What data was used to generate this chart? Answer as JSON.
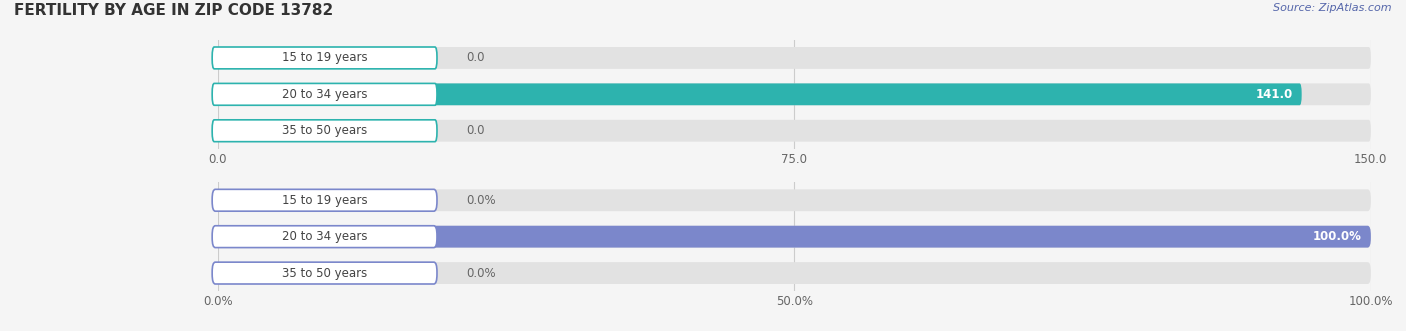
{
  "title": "FERTILITY BY AGE IN ZIP CODE 13782",
  "source": "Source: ZipAtlas.com",
  "background_color": "#f5f5f5",
  "top_chart": {
    "categories": [
      "15 to 19 years",
      "20 to 34 years",
      "35 to 50 years"
    ],
    "values": [
      0.0,
      141.0,
      0.0
    ],
    "xlim": [
      0,
      150.0
    ],
    "xticks": [
      0.0,
      75.0,
      150.0
    ],
    "xtick_labels": [
      "0.0",
      "75.0",
      "150.0"
    ],
    "bar_color": "#2db3ae",
    "bar_bg_color": "#e2e2e2",
    "label_border_color": "#2db3ae",
    "value_color_inside": "#ffffff",
    "value_color_outside": "#666666",
    "bar_height": 0.6
  },
  "bottom_chart": {
    "categories": [
      "15 to 19 years",
      "20 to 34 years",
      "35 to 50 years"
    ],
    "values": [
      0.0,
      100.0,
      0.0
    ],
    "xlim": [
      0,
      100.0
    ],
    "xticks": [
      0.0,
      50.0,
      100.0
    ],
    "xtick_labels": [
      "0.0%",
      "50.0%",
      "100.0%"
    ],
    "bar_color": "#7b87cb",
    "bar_bg_color": "#e2e2e2",
    "label_border_color": "#7b87cb",
    "value_color_inside": "#ffffff",
    "value_color_outside": "#666666",
    "bar_height": 0.6
  },
  "label_text_color": "#444444",
  "label_fontsize": 8.5,
  "value_fontsize": 8.5,
  "tick_fontsize": 8.5,
  "title_fontsize": 11,
  "source_fontsize": 8,
  "figsize": [
    14.06,
    3.31
  ],
  "dpi": 100
}
